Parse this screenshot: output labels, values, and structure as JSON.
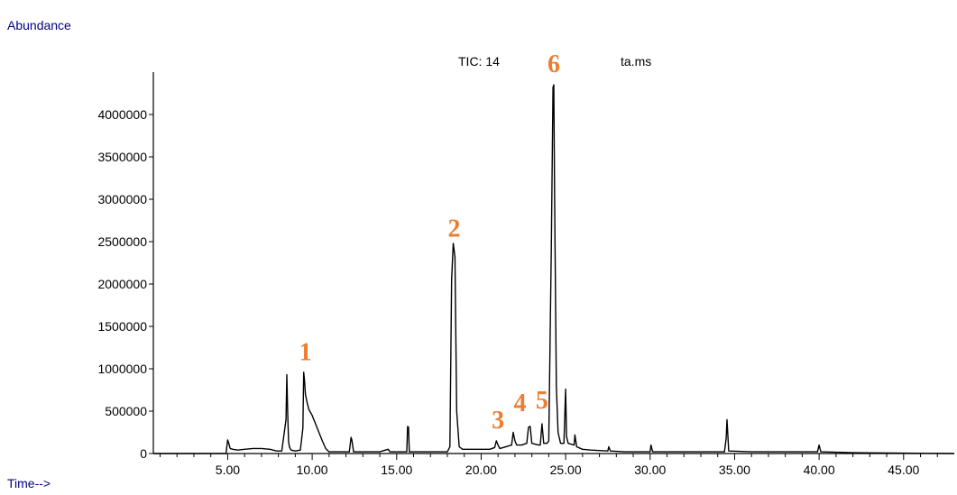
{
  "chart_data": {
    "type": "line",
    "ylabel": "Abundance",
    "xlabel": "Time-->",
    "title_left": "TIC: 14",
    "title_right": "ta.ms",
    "xlim": [
      0.6,
      48.0
    ],
    "ylim": [
      0,
      4500000
    ],
    "y_ticks": [
      0,
      500000,
      1000000,
      1500000,
      2000000,
      2500000,
      3000000,
      3500000,
      4000000
    ],
    "x_ticks": [
      "5.00",
      "10.00",
      "15.00",
      "20.00",
      "25.00",
      "30.00",
      "35.00",
      "40.00",
      "45.00"
    ],
    "x_tick_values": [
      5,
      10,
      15,
      20,
      25,
      30,
      35,
      40,
      45
    ],
    "series": [
      {
        "x": [
          0.6,
          4.9,
          5.0,
          5.05,
          5.15,
          5.3,
          5.6,
          6.0,
          6.5,
          7.0,
          7.5,
          7.9,
          8.2,
          8.45,
          8.5,
          8.55,
          8.6,
          8.65,
          8.75,
          9.0,
          9.3,
          9.45,
          9.5,
          9.55,
          9.6,
          9.7,
          9.8,
          10.0,
          10.3,
          10.6,
          10.8,
          11.0,
          12.2,
          12.3,
          12.35,
          12.45,
          13.0,
          14.0,
          14.5,
          14.6,
          15.0,
          15.6,
          15.65,
          15.7,
          15.75,
          17.0,
          17.5,
          18.0,
          18.15,
          18.25,
          18.35,
          18.45,
          18.55,
          18.7,
          18.9,
          19.5,
          20.0,
          20.5,
          20.8,
          20.9,
          21.0,
          21.1,
          21.3,
          21.8,
          21.9,
          22.0,
          22.1,
          22.4,
          22.7,
          22.8,
          22.9,
          23.0,
          23.4,
          23.5,
          23.6,
          23.7,
          23.9,
          24.0,
          24.15,
          24.25,
          24.3,
          24.35,
          24.45,
          24.55,
          24.7,
          24.9,
          25.0,
          25.05,
          25.15,
          25.5,
          25.55,
          25.65,
          26.0,
          26.5,
          27.5,
          27.55,
          27.65,
          28.5,
          30.0,
          30.05,
          30.15,
          32.0,
          34.4,
          34.5,
          34.55,
          34.65,
          36.0,
          39.9,
          40.0,
          40.1,
          42.0,
          48.0
        ],
        "y": [
          0,
          0,
          160000,
          130000,
          60000,
          50000,
          40000,
          50000,
          60000,
          60000,
          50000,
          30000,
          30000,
          400000,
          930000,
          500000,
          150000,
          80000,
          40000,
          30000,
          40000,
          300000,
          960000,
          850000,
          700000,
          600000,
          520000,
          450000,
          300000,
          150000,
          60000,
          20000,
          20000,
          190000,
          160000,
          20000,
          20000,
          20000,
          50000,
          20000,
          20000,
          20000,
          320000,
          310000,
          20000,
          20000,
          20000,
          20000,
          80000,
          2050000,
          2480000,
          2320000,
          500000,
          80000,
          50000,
          50000,
          50000,
          50000,
          70000,
          150000,
          100000,
          60000,
          70000,
          100000,
          250000,
          150000,
          100000,
          100000,
          120000,
          310000,
          320000,
          120000,
          100000,
          100000,
          350000,
          120000,
          120000,
          150000,
          2400000,
          4320000,
          4350000,
          3000000,
          800000,
          250000,
          120000,
          120000,
          760000,
          200000,
          120000,
          100000,
          220000,
          80000,
          50000,
          40000,
          30000,
          80000,
          30000,
          20000,
          20000,
          100000,
          20000,
          20000,
          20000,
          180000,
          400000,
          30000,
          20000,
          20000,
          100000,
          20000,
          10000,
          0
        ]
      }
    ],
    "peak_labels": [
      {
        "text": "1",
        "x": 9.6,
        "y": 1100000
      },
      {
        "text": "2",
        "x": 18.4,
        "y": 2560000
      },
      {
        "text": "3",
        "x": 21.0,
        "y": 300000
      },
      {
        "text": "4",
        "x": 22.3,
        "y": 500000
      },
      {
        "text": "5",
        "x": 23.6,
        "y": 530000
      },
      {
        "text": "6",
        "x": 24.3,
        "y": 4500000
      }
    ],
    "colors": {
      "axis_label": "#000080",
      "peak_label": "#ED7D31",
      "trace": "#000000"
    }
  }
}
